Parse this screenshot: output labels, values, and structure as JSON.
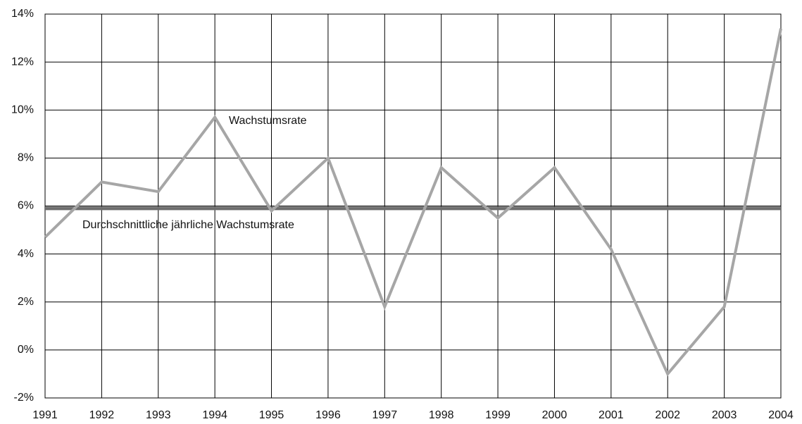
{
  "chart_data": {
    "type": "line",
    "x": [
      1991,
      1992,
      1993,
      1994,
      1995,
      1996,
      1997,
      1998,
      1999,
      2000,
      2001,
      2002,
      2003,
      2004
    ],
    "series": [
      {
        "name": "Wachstumsrate",
        "color": "#a6a6a6",
        "values": [
          4.7,
          7.0,
          6.6,
          9.7,
          5.8,
          8.0,
          1.8,
          7.6,
          5.5,
          7.6,
          4.2,
          -1.0,
          1.8,
          13.4
        ]
      }
    ],
    "average": {
      "label": "Durchschnittliche jährliche Wachstumsrate",
      "value": 5.9,
      "color": "#6e6e6e"
    },
    "xlim": [
      1991,
      2004
    ],
    "xticks": [
      1991,
      1992,
      1993,
      1994,
      1995,
      1996,
      1997,
      1998,
      1999,
      2000,
      2001,
      2002,
      2003,
      2004
    ],
    "ylim": [
      -2,
      14
    ],
    "yticks": [
      {
        "value": -2,
        "label": "-2%"
      },
      {
        "value": 0,
        "label": "0%"
      },
      {
        "value": 2,
        "label": "2%"
      },
      {
        "value": 4,
        "label": "4%"
      },
      {
        "value": 6,
        "label": "6%"
      },
      {
        "value": 8,
        "label": "8%"
      },
      {
        "value": 10,
        "label": "10%"
      },
      {
        "value": 12,
        "label": "12%"
      },
      {
        "value": 14,
        "label": "14%"
      }
    ],
    "grid": true
  }
}
